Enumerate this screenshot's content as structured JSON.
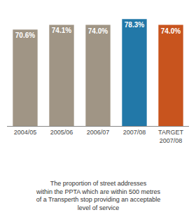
{
  "chart_data": {
    "type": "bar",
    "categories": [
      "2004/05",
      "2005/06",
      "2006/07",
      "2007/08",
      "TARGET\n2007/08"
    ],
    "values": [
      70.6,
      74.1,
      74.0,
      78.3,
      74.0
    ],
    "value_labels": [
      "70.6%",
      "74.1%",
      "74.0%",
      "78.3%",
      "74.0%"
    ],
    "data_labels": true,
    "colors": [
      "#a09585",
      "#a09585",
      "#a09585",
      "#2278a8",
      "#c8541e"
    ],
    "ylim": [
      0,
      82
    ],
    "tick_labels": "x",
    "grid": false,
    "annotations": [
      "The proportion of street addresses\nwithin the PPTA which are within 500 metres\nof a Transperth stop providing an acceptable\nlevel of service"
    ]
  }
}
